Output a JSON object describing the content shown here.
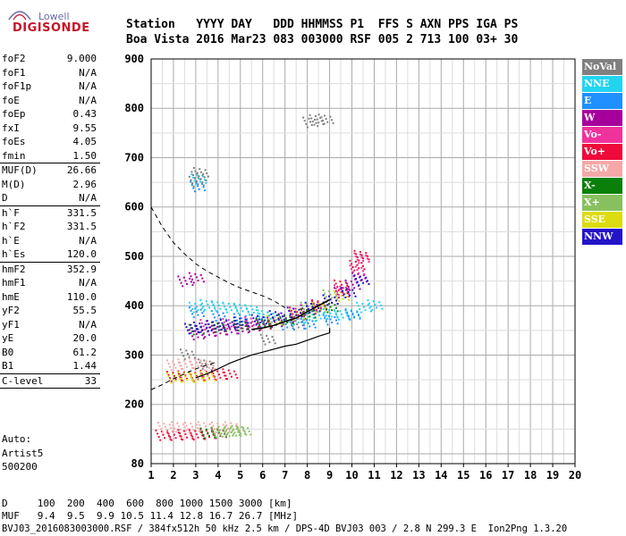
{
  "logo": {
    "line1": "Lowell",
    "line2": "DIGISONDE"
  },
  "header": {
    "line1": "Station   YYYY DAY   DDD HHMMSS P1  FFS S AXN PPS IGA PS",
    "line2": "Boa Vista 2016 Mar23 083 003000 RSF 005 2 713 100 03+ 30"
  },
  "params": [
    {
      "k": "foF2",
      "v": "9.000"
    },
    {
      "k": "foF1",
      "v": "N/A"
    },
    {
      "k": "foF1p",
      "v": "N/A"
    },
    {
      "k": "foE",
      "v": "N/A"
    },
    {
      "k": "foEp",
      "v": "0.43"
    },
    {
      "k": "fxI",
      "v": "9.55"
    },
    {
      "k": "foEs",
      "v": "4.05"
    },
    {
      "k": "fmin",
      "v": "1.50",
      "sep_after": true
    },
    {
      "k": "MUF(D)",
      "v": "26.66"
    },
    {
      "k": "M(D)",
      "v": "2.96"
    },
    {
      "k": "D",
      "v": "N/A",
      "sep_after": true
    },
    {
      "k": "h`F",
      "v": "331.5"
    },
    {
      "k": "h`F2",
      "v": "331.5"
    },
    {
      "k": "h`E",
      "v": "N/A"
    },
    {
      "k": "h`Es",
      "v": "120.0",
      "sep_after": true
    },
    {
      "k": "hmF2",
      "v": "352.9"
    },
    {
      "k": "hmF1",
      "v": "N/A"
    },
    {
      "k": "hmE",
      "v": "110.0"
    },
    {
      "k": "yF2",
      "v": "55.5"
    },
    {
      "k": "yF1",
      "v": "N/A"
    },
    {
      "k": "yE",
      "v": "20.0"
    },
    {
      "k": "B0",
      "v": "61.2"
    },
    {
      "k": "B1",
      "v": "1.44",
      "sep_after": true
    },
    {
      "k": "C-level",
      "v": "33",
      "sep_after": true
    }
  ],
  "auto": [
    "Auto:",
    "Artist5",
    "500200"
  ],
  "legend": [
    {
      "label": "NoVal",
      "color": "#808080"
    },
    {
      "label": "NNE",
      "color": "#22d4f0"
    },
    {
      "label": "E",
      "color": "#1e90ff"
    },
    {
      "label": "W",
      "color": "#a6009c"
    },
    {
      "label": "Vo-",
      "color": "#f0329c"
    },
    {
      "label": "Vo+",
      "color": "#ee0a3a"
    },
    {
      "label": "SSW",
      "color": "#f5a8a8"
    },
    {
      "label": "X-",
      "color": "#0a800a"
    },
    {
      "label": "X+",
      "color": "#88c060"
    },
    {
      "label": "SSE",
      "color": "#dcdc10"
    },
    {
      "label": "NNW",
      "color": "#2414c8"
    }
  ],
  "chart_data": {
    "type": "scatter",
    "title": "",
    "xlabel": "",
    "ylabel": "",
    "xlim": [
      1,
      20
    ],
    "ylim": [
      80,
      900
    ],
    "x_ticks": [
      1,
      2,
      3,
      4,
      5,
      6,
      7,
      8,
      9,
      10,
      11,
      12,
      13,
      14,
      15,
      16,
      17,
      18,
      19,
      20
    ],
    "y_ticks": [
      80,
      200,
      300,
      400,
      500,
      600,
      700,
      800,
      900
    ],
    "grid": true,
    "legend_position": "right",
    "series": [
      {
        "name": "NoVal",
        "color": "#808080",
        "points": [
          [
            3.0,
            650
          ],
          [
            3.1,
            660
          ],
          [
            3.2,
            668
          ],
          [
            8.1,
            770
          ],
          [
            8.4,
            775
          ],
          [
            8.8,
            776
          ],
          [
            2.6,
            300
          ],
          [
            3.4,
            280
          ],
          [
            6.2,
            330
          ],
          [
            7.5,
            360
          ]
        ]
      },
      {
        "name": "NNE",
        "color": "#22d4f0",
        "points": [
          [
            3.0,
            395
          ],
          [
            3.5,
            400
          ],
          [
            4.0,
            398
          ],
          [
            4.5,
            395
          ],
          [
            5.0,
            393
          ],
          [
            5.5,
            390
          ],
          [
            6.0,
            380
          ],
          [
            6.5,
            375
          ],
          [
            7.0,
            372
          ],
          [
            7.5,
            370
          ],
          [
            8.0,
            375
          ],
          [
            8.5,
            378
          ],
          [
            9.0,
            382
          ],
          [
            9.5,
            380
          ],
          [
            10.0,
            382
          ],
          [
            10.5,
            395
          ],
          [
            11.0,
            400
          ],
          [
            3.1,
            655
          ]
        ]
      },
      {
        "name": "E",
        "color": "#1e90ff",
        "points": [
          [
            3.0,
            385
          ],
          [
            4.0,
            378
          ],
          [
            5.0,
            372
          ],
          [
            6.0,
            365
          ],
          [
            7.0,
            360
          ],
          [
            8.0,
            362
          ],
          [
            9.0,
            370
          ],
          [
            10.0,
            380
          ],
          [
            3.05,
            640
          ]
        ]
      },
      {
        "name": "W",
        "color": "#a6009c",
        "points": [
          [
            3.0,
            340
          ],
          [
            3.5,
            345
          ],
          [
            4.0,
            348
          ],
          [
            4.5,
            350
          ],
          [
            5.0,
            352
          ],
          [
            5.5,
            356
          ],
          [
            6.0,
            360
          ],
          [
            6.5,
            365
          ],
          [
            7.0,
            372
          ],
          [
            7.5,
            380
          ],
          [
            8.0,
            390
          ],
          [
            8.5,
            398
          ],
          [
            9.0,
            410
          ],
          [
            9.5,
            425
          ],
          [
            10.0,
            440
          ],
          [
            10.3,
            455
          ],
          [
            2.5,
            448
          ],
          [
            3.0,
            455
          ]
        ]
      },
      {
        "name": "Vo-",
        "color": "#f0329c",
        "points": [
          [
            3.5,
            360
          ],
          [
            4.5,
            362
          ],
          [
            5.5,
            365
          ],
          [
            6.5,
            368
          ],
          [
            7.5,
            378
          ],
          [
            8.5,
            395
          ],
          [
            9.5,
            430
          ],
          [
            10.2,
            470
          ],
          [
            10.4,
            495
          ]
        ]
      },
      {
        "name": "Vo+",
        "color": "#ee0a3a",
        "points": [
          [
            1.5,
            136
          ],
          [
            2.0,
            136
          ],
          [
            2.5,
            137
          ],
          [
            3.0,
            137
          ],
          [
            3.5,
            138
          ],
          [
            4.0,
            140
          ],
          [
            2.0,
            255
          ],
          [
            2.5,
            256
          ],
          [
            3.0,
            255
          ],
          [
            3.5,
            257
          ],
          [
            4.0,
            258
          ],
          [
            4.5,
            260
          ],
          [
            6.0,
            360
          ],
          [
            7.5,
            385
          ],
          [
            8.5,
            400
          ],
          [
            9.5,
            440
          ],
          [
            10.2,
            480
          ],
          [
            10.4,
            500
          ]
        ]
      },
      {
        "name": "SSW",
        "color": "#f5a8a8",
        "points": [
          [
            1.6,
            152
          ],
          [
            2.2,
            153
          ],
          [
            2.8,
            152
          ],
          [
            3.4,
            153
          ],
          [
            4.0,
            152
          ],
          [
            4.6,
            153
          ],
          [
            2.0,
            278
          ],
          [
            2.5,
            280
          ],
          [
            3.0,
            282
          ],
          [
            3.5,
            278
          ]
        ]
      },
      {
        "name": "X-",
        "color": "#0a800a",
        "points": [
          [
            3.0,
            350
          ],
          [
            4.0,
            355
          ],
          [
            5.0,
            358
          ],
          [
            6.0,
            362
          ],
          [
            7.0,
            370
          ],
          [
            8.0,
            382
          ],
          [
            9.0,
            395
          ],
          [
            3.5,
            140
          ],
          [
            4.0,
            141
          ]
        ]
      },
      {
        "name": "X+",
        "color": "#88c060",
        "points": [
          [
            4.0,
            142
          ],
          [
            4.3,
            143
          ],
          [
            4.6,
            144
          ],
          [
            4.9,
            145
          ],
          [
            5.1,
            145
          ],
          [
            8.0,
            395
          ],
          [
            9.0,
            420
          ]
        ]
      },
      {
        "name": "SSE",
        "color": "#dcdc10",
        "points": [
          [
            2.0,
            252
          ],
          [
            2.5,
            254
          ],
          [
            3.0,
            253
          ],
          [
            3.5,
            255
          ],
          [
            6.5,
            368
          ],
          [
            7.5,
            380
          ],
          [
            8.5,
            395
          ],
          [
            9.5,
            418
          ]
        ]
      },
      {
        "name": "NNW",
        "color": "#2414c8",
        "points": [
          [
            2.8,
            352
          ],
          [
            3.2,
            355
          ],
          [
            3.8,
            358
          ],
          [
            4.4,
            360
          ],
          [
            5.0,
            365
          ],
          [
            5.8,
            370
          ],
          [
            6.6,
            378
          ],
          [
            7.4,
            385
          ],
          [
            8.2,
            395
          ],
          [
            9.0,
            410
          ],
          [
            9.8,
            425
          ],
          [
            10.4,
            450
          ]
        ]
      }
    ],
    "profile_solid": [
      [
        3.0,
        254
      ],
      [
        3.5,
        262
      ],
      [
        4.0,
        272
      ],
      [
        4.5,
        283
      ],
      [
        5.0,
        292
      ],
      [
        5.5,
        300
      ],
      [
        6.0,
        306
      ],
      [
        6.5,
        312
      ],
      [
        7.0,
        318
      ],
      [
        7.5,
        322
      ],
      [
        8.0,
        330
      ],
      [
        8.5,
        338
      ],
      [
        9.0,
        345
      ],
      [
        9.0,
        355
      ]
    ],
    "profile_black": [
      [
        5.5,
        352
      ],
      [
        6.0,
        355
      ],
      [
        6.5,
        360
      ],
      [
        7.0,
        368
      ],
      [
        7.5,
        375
      ],
      [
        8.0,
        388
      ],
      [
        8.5,
        400
      ],
      [
        9.0,
        412
      ]
    ],
    "muf_dashed": [
      [
        1.0,
        600
      ],
      [
        1.5,
        560
      ],
      [
        2.0,
        528
      ],
      [
        2.5,
        505
      ],
      [
        3.0,
        485
      ],
      [
        3.5,
        470
      ],
      [
        4.0,
        458
      ],
      [
        4.5,
        446
      ],
      [
        5.0,
        436
      ],
      [
        5.5,
        428
      ],
      [
        6.0,
        420
      ],
      [
        6.5,
        410
      ],
      [
        7.0,
        396
      ]
    ],
    "lower_dashed": [
      [
        1.0,
        230
      ],
      [
        1.5,
        240
      ],
      [
        2.0,
        252
      ],
      [
        2.5,
        262
      ],
      [
        3.0,
        272
      ],
      [
        3.5,
        280
      ],
      [
        4.0,
        286
      ]
    ]
  },
  "footer": {
    "line1": "D     100  200  400  600  800 1000 1500 3000 [km]",
    "line2": "MUF   9.4  9.5  9.9 10.5 11.4 12.8 16.7 26.7 [MHz]",
    "line3": "BVJ03_2016083003000.RSF / 384fx512h 50 kHz 2.5 km / DPS-4D BVJ03 003 / 2.8 N 299.3 E  Ion2Png 1.3.20"
  }
}
